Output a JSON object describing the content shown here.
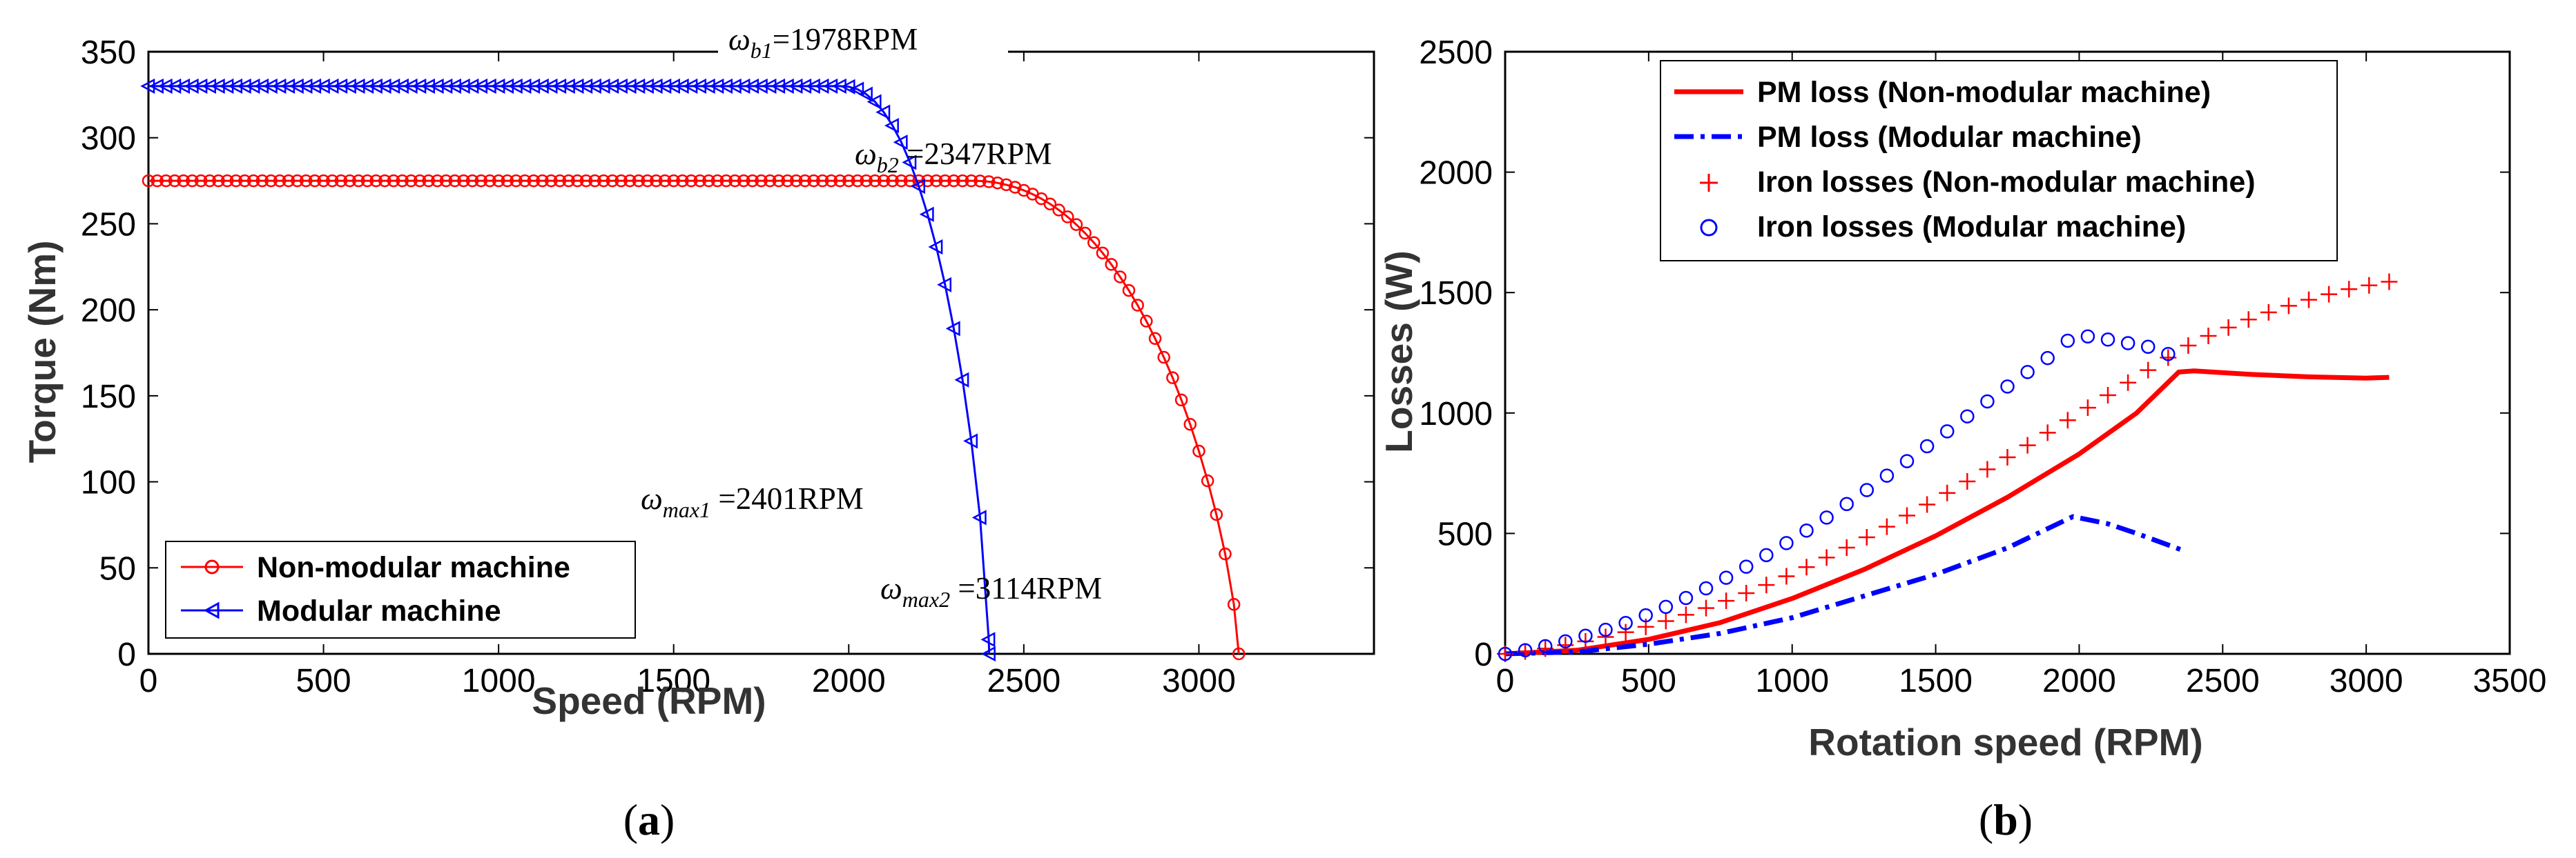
{
  "colors": {
    "red": "#ff0000",
    "blue": "#0000ff",
    "axis": "#000000"
  },
  "chart_data": [
    {
      "id": "a",
      "type": "line",
      "caption_paren_open": "(",
      "caption_letter": "a",
      "caption_paren_close": ")",
      "xlabel": "Speed (RPM)",
      "ylabel": "Torque (Nm)",
      "xlim": [
        0,
        3500
      ],
      "ylim": [
        0,
        350
      ],
      "xticks": [
        0,
        500,
        1000,
        1500,
        2000,
        2500,
        3000
      ],
      "yticks": [
        0,
        50,
        100,
        150,
        200,
        250,
        300,
        350
      ],
      "grid": false,
      "legend_position": "bottom-left",
      "series": [
        {
          "name": "Non-modular machine",
          "color": "#ff0000",
          "marker": "circle",
          "base_torque": 275,
          "base_speed": 2347,
          "max_speed": 3114,
          "marker_step": 25
        },
        {
          "name": "Modular machine",
          "color": "#0000ff",
          "marker": "triangle-left",
          "base_torque": 330,
          "base_speed": 1978,
          "max_speed": 2401,
          "marker_step": 25
        }
      ],
      "annotations": [
        {
          "symbol": "ω",
          "sub": "b1",
          "text": "=1978RPM"
        },
        {
          "symbol": "ω",
          "sub": "b2",
          "text": " =2347RPM"
        },
        {
          "symbol": "ω",
          "sub": "max1",
          "text": " =2401RPM"
        },
        {
          "symbol": "ω",
          "sub": "max2",
          "text": " =3114RPM"
        }
      ]
    },
    {
      "id": "b",
      "type": "line",
      "caption_paren_open": "(",
      "caption_letter": "b",
      "caption_paren_close": ")",
      "xlabel": "Rotation speed (RPM)",
      "ylabel": "Losses (W)",
      "xlim": [
        0,
        3500
      ],
      "ylim": [
        0,
        2500
      ],
      "xticks": [
        0,
        500,
        1000,
        1500,
        2000,
        2500,
        3000,
        3500
      ],
      "yticks": [
        0,
        500,
        1000,
        1500,
        2000,
        2500
      ],
      "grid": false,
      "legend_position": "top-center",
      "series": [
        {
          "name": "PM loss (Non-modular machine)",
          "color": "#ff0000",
          "style": "solid",
          "x": [
            0,
            250,
            500,
            750,
            1000,
            1250,
            1500,
            1750,
            2000,
            2200,
            2347,
            2400,
            2600,
            2800,
            3000,
            3080
          ],
          "y": [
            0,
            15,
            60,
            130,
            230,
            350,
            490,
            650,
            830,
            1000,
            1170,
            1175,
            1160,
            1150,
            1145,
            1148
          ]
        },
        {
          "name": "PM loss (Modular machine)",
          "color": "#0000ff",
          "style": "dashdot",
          "x": [
            0,
            250,
            500,
            750,
            1000,
            1250,
            1500,
            1750,
            1978,
            2100,
            2200,
            2360
          ],
          "y": [
            0,
            8,
            40,
            85,
            150,
            240,
            330,
            440,
            570,
            540,
            500,
            430
          ]
        },
        {
          "name": "Iron losses (Non-modular machine)",
          "color": "#ff0000",
          "marker": "plus",
          "x": [
            0,
            70,
            140,
            210,
            280,
            350,
            420,
            490,
            560,
            630,
            700,
            770,
            840,
            910,
            980,
            1050,
            1120,
            1190,
            1260,
            1330,
            1400,
            1470,
            1540,
            1610,
            1680,
            1750,
            1820,
            1890,
            1960,
            2030,
            2100,
            2170,
            2240,
            2310,
            2380,
            2450,
            2520,
            2590,
            2660,
            2730,
            2800,
            2870,
            2940,
            3010,
            3080
          ],
          "y": [
            0,
            10,
            22,
            36,
            52,
            70,
            90,
            112,
            136,
            162,
            190,
            220,
            252,
            286,
            322,
            360,
            400,
            441,
            484,
            528,
            574,
            620,
            668,
            716,
            766,
            816,
            866,
            918,
            970,
            1022,
            1074,
            1126,
            1178,
            1230,
            1280,
            1320,
            1355,
            1388,
            1418,
            1445,
            1470,
            1493,
            1514,
            1530,
            1545
          ]
        },
        {
          "name": "Iron losses (Modular machine)",
          "color": "#0000ff",
          "marker": "circle-open",
          "x": [
            0,
            70,
            140,
            210,
            280,
            350,
            420,
            490,
            560,
            630,
            700,
            770,
            840,
            910,
            980,
            1050,
            1120,
            1190,
            1260,
            1330,
            1400,
            1470,
            1540,
            1610,
            1680,
            1750,
            1820,
            1890,
            1960,
            2030,
            2100,
            2170,
            2240,
            2310
          ],
          "y": [
            0,
            15,
            32,
            52,
            75,
            100,
            128,
            160,
            195,
            232,
            272,
            316,
            362,
            410,
            460,
            512,
            566,
            622,
            680,
            740,
            800,
            862,
            924,
            986,
            1048,
            1110,
            1170,
            1228,
            1300,
            1318,
            1305,
            1290,
            1275,
            1245
          ]
        }
      ]
    }
  ]
}
